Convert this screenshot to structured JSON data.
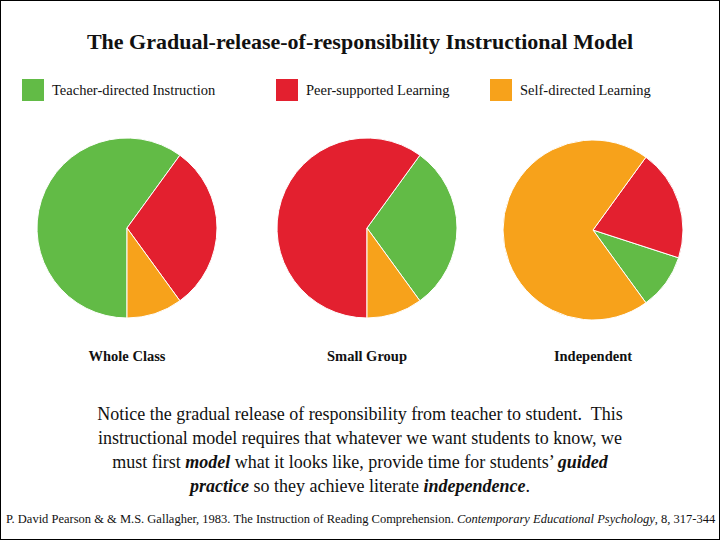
{
  "slide": {
    "title": "The Gradual-release-of-responsibility Instructional Model",
    "caption": [
      [
        {
          "text": "Notice the gradual release of responsibility from teacher to student.  This"
        }
      ],
      [
        {
          "text": "instructional model requires that whatever we want students to know, we"
        }
      ],
      [
        {
          "text": "must first "
        },
        {
          "text": "model",
          "emphasis": true
        },
        {
          "text": " what it looks like, provide time for students’ "
        },
        {
          "text": "guided",
          "emphasis": true
        }
      ],
      [
        {
          "text": "practice",
          "emphasis": true
        },
        {
          "text": " so they achieve literate "
        },
        {
          "text": "independence",
          "emphasis": true
        },
        {
          "text": "."
        }
      ]
    ],
    "citation": [
      {
        "text": "P. David Pearson & & M.S. Gallagher, 1983. The Instruction of Reading Comprehension. "
      },
      {
        "text": "Contemporary Educational Psychology",
        "emphasis": true
      },
      {
        "text": ", 8, 317-344"
      }
    ]
  },
  "chart_data": [
    {
      "type": "pie",
      "title": "Whole Class",
      "categories": [
        "Teacher-directed Instruction",
        "Peer-supported Learning",
        "Self-directed Learning"
      ],
      "colors": [
        "#62bb46",
        "#e3202f",
        "#f7a21b"
      ],
      "values": [
        60,
        30,
        10
      ],
      "legend": "top"
    },
    {
      "type": "pie",
      "title": "Small Group",
      "values": [
        30,
        60,
        10
      ]
    },
    {
      "type": "pie",
      "title": "Independent",
      "values": [
        10,
        20,
        70
      ]
    }
  ]
}
